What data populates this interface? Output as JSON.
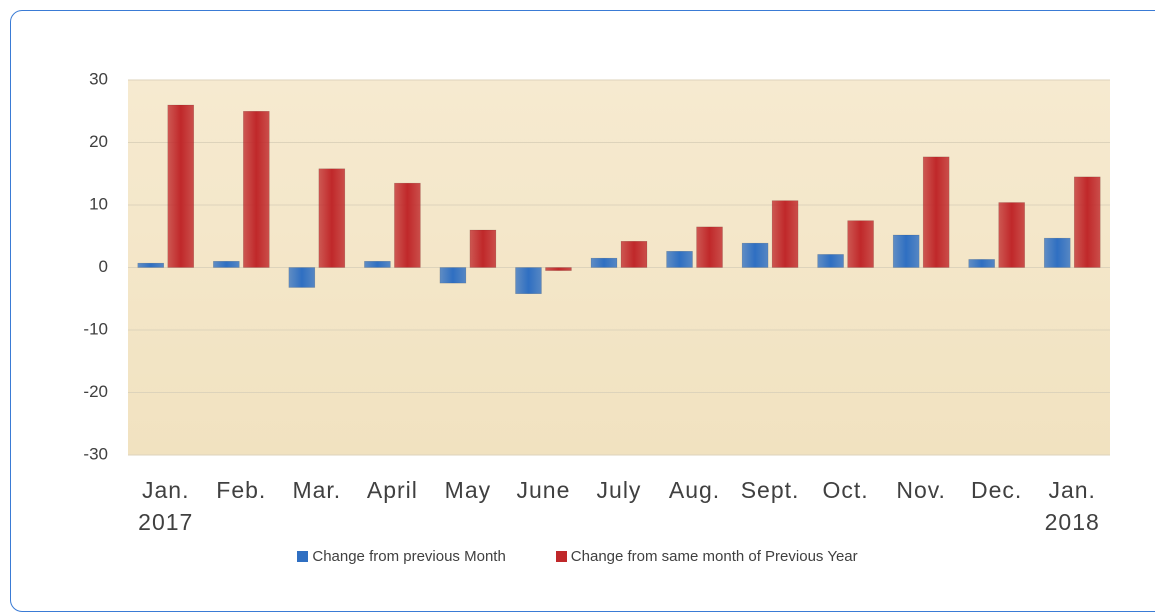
{
  "chart_data": {
    "type": "bar",
    "categories": [
      "Jan. 2017",
      "Feb.",
      "Mar.",
      "April",
      "May",
      "June",
      "July",
      "Aug.",
      "Sept.",
      "Oct.",
      "Nov.",
      "Dec.",
      "Jan. 2018"
    ],
    "series": [
      {
        "name": "Change from previous Month",
        "color": "#2f6fc2",
        "values": [
          0.7,
          1.0,
          -3.2,
          1.0,
          -2.5,
          -4.2,
          1.5,
          2.6,
          3.9,
          2.1,
          5.2,
          1.3,
          4.7
        ]
      },
      {
        "name": "Change from same month of  Previous Year",
        "color": "#c0282a",
        "values": [
          26,
          25,
          15.8,
          13.5,
          6,
          -0.5,
          4.2,
          6.5,
          10.7,
          7.5,
          17.7,
          10.4,
          14.5
        ]
      }
    ],
    "ylim": [
      -30,
      30
    ],
    "yticks": [
      -30,
      -20,
      -10,
      0,
      10,
      20,
      30
    ],
    "grid": true,
    "legend": "bottom"
  }
}
